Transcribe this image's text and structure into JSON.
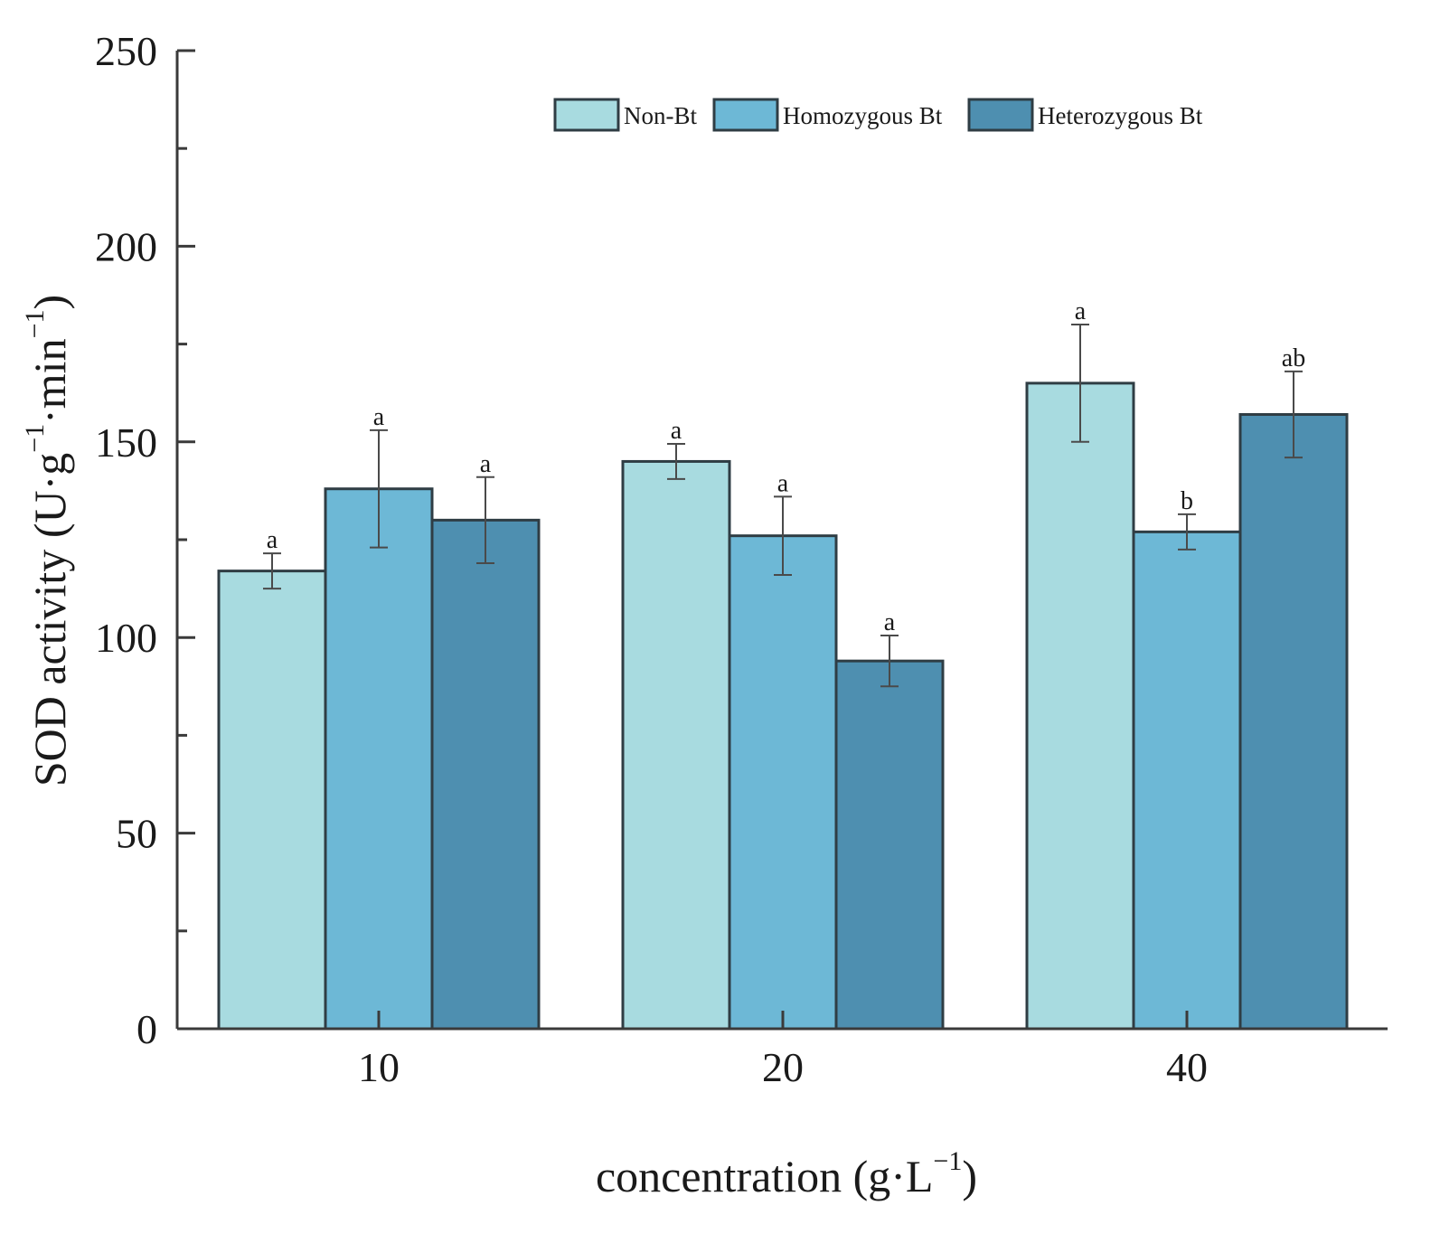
{
  "chart_data": {
    "type": "bar",
    "title": "",
    "xlabel_main": "concentration (g·L",
    "xlabel_sup": "−1",
    "xlabel_end": ")",
    "ylabel_main": "SOD activity (U·g",
    "ylabel_sup1": "−1",
    "ylabel_mid": "·min",
    "ylabel_sup2": "−1",
    "ylabel_end": ")",
    "ylim": [
      0,
      250
    ],
    "yticks": [
      0,
      50,
      100,
      150,
      200,
      250
    ],
    "yticks_minor": [
      25,
      75,
      125,
      175,
      225
    ],
    "categories": [
      "10",
      "20",
      "40"
    ],
    "series": [
      {
        "name": "Non-Bt",
        "color": "#a8dbe0",
        "values": [
          117,
          145,
          165
        ],
        "errors": [
          4.5,
          4.5,
          15
        ],
        "labels": [
          "a",
          "a",
          "a"
        ]
      },
      {
        "name": "Homozygous Bt",
        "color": "#6db8d6",
        "values": [
          138,
          126,
          127
        ],
        "errors": [
          15,
          10,
          4.5
        ],
        "labels": [
          "a",
          "a",
          "b"
        ]
      },
      {
        "name": "Heterozygous Bt",
        "color": "#4e8fb0",
        "values": [
          130,
          94,
          157
        ],
        "errors": [
          11,
          6.5,
          11
        ],
        "labels": [
          "a",
          "a",
          "ab"
        ]
      }
    ],
    "legend_position": "top-right"
  }
}
